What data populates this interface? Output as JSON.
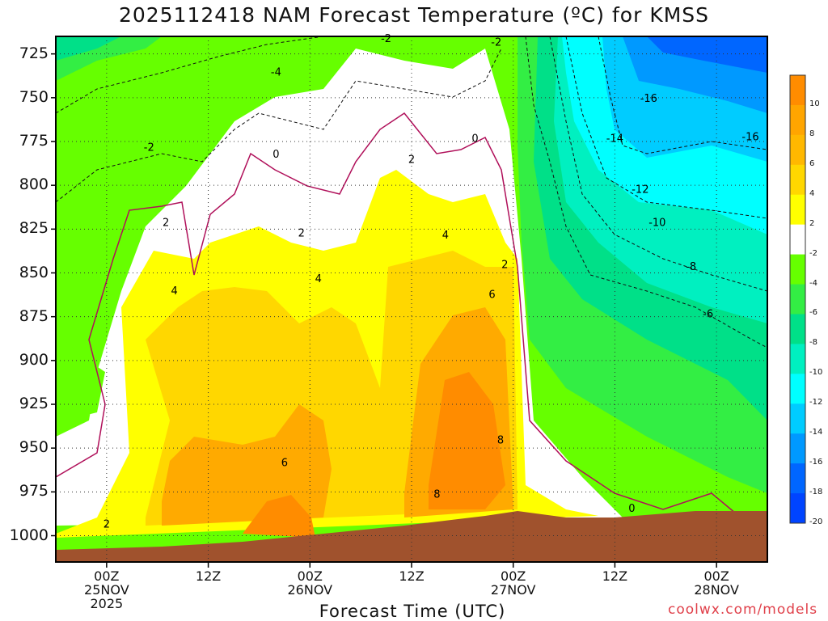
{
  "title": "2025112418 NAM Forecast Temperature (ºC) for KMSS",
  "xlabel": "Forecast Time (UTC)",
  "credit": "coolwx.com/models",
  "colors": {
    "ground": "#a0522d",
    "white_band": "#ffffff",
    "zero_line": "#b0105a",
    "warm": [
      "#ffff00",
      "#ffd700",
      "#ffaa00",
      "#ff8c00"
    ],
    "cold": [
      "#66ff00",
      "#33ee44",
      "#00e088",
      "#00f0c0",
      "#00ffff",
      "#00ccff",
      "#0099ff",
      "#0066ff"
    ]
  },
  "chart_data": {
    "type": "heatmap",
    "title": "2025112418 NAM Forecast Temperature (ºC) for KMSS",
    "xlabel": "Forecast Time (UTC)",
    "ylabel": "",
    "y_ticks": [
      "725",
      "750",
      "775",
      "800",
      "825",
      "850",
      "875",
      "900",
      "925",
      "950",
      "975",
      "1000"
    ],
    "ylim": [
      715,
      1015
    ],
    "x_ticks": [
      {
        "hour": 0,
        "line1": "00Z",
        "line2": "25NOV",
        "line3": "2025"
      },
      {
        "hour": 12,
        "line1": "12Z",
        "line2": "",
        "line3": ""
      },
      {
        "hour": 24,
        "line1": "00Z",
        "line2": "26NOV",
        "line3": ""
      },
      {
        "hour": 36,
        "line1": "12Z",
        "line2": "",
        "line3": ""
      },
      {
        "hour": 48,
        "line1": "00Z",
        "line2": "27NOV",
        "line3": ""
      },
      {
        "hour": 60,
        "line1": "12Z",
        "line2": "",
        "line3": ""
      },
      {
        "hour": 72,
        "line1": "00Z",
        "line2": "28NOV",
        "line3": ""
      }
    ],
    "xlim": [
      -6,
      78
    ],
    "colorbar": {
      "labels": [
        "10",
        "8",
        "6",
        "4",
        "2",
        "-2",
        "-4",
        "-6",
        "-8",
        "-10",
        "-12",
        "-14",
        "-16",
        "-18",
        "-20"
      ],
      "colors": [
        "#ff8c00",
        "#ffa500",
        "#ffb800",
        "#ffd700",
        "#ffff00",
        "#ffffff",
        "#66ff00",
        "#33ee44",
        "#00e088",
        "#00f0c0",
        "#00ffff",
        "#00ccff",
        "#0099ff",
        "#0066ff",
        "#0044ff"
      ]
    },
    "contour_labels": [
      {
        "text": "-2",
        "hour": 33,
        "p": 716
      },
      {
        "text": "-2",
        "hour": 46,
        "p": 718
      },
      {
        "text": "-4",
        "hour": 20,
        "p": 735
      },
      {
        "text": "-2",
        "hour": 5,
        "p": 778
      },
      {
        "text": "0",
        "hour": 20,
        "p": 782
      },
      {
        "text": "0",
        "hour": 43.5,
        "p": 773
      },
      {
        "text": "2",
        "hour": 36,
        "p": 785
      },
      {
        "text": "-16",
        "hour": 64,
        "p": 750
      },
      {
        "text": "-16",
        "hour": 76,
        "p": 772
      },
      {
        "text": "-14",
        "hour": 60,
        "p": 773
      },
      {
        "text": "-12",
        "hour": 63,
        "p": 802
      },
      {
        "text": "-10",
        "hour": 65,
        "p": 821
      },
      {
        "text": "-8",
        "hour": 69,
        "p": 846
      },
      {
        "text": "-6",
        "hour": 71,
        "p": 873
      },
      {
        "text": "2",
        "hour": 7,
        "p": 821
      },
      {
        "text": "2",
        "hour": 23,
        "p": 827
      },
      {
        "text": "4",
        "hour": 40,
        "p": 828
      },
      {
        "text": "2",
        "hour": 47,
        "p": 845
      },
      {
        "text": "4",
        "hour": 8,
        "p": 860
      },
      {
        "text": "4",
        "hour": 25,
        "p": 853
      },
      {
        "text": "6",
        "hour": 45.5,
        "p": 862
      },
      {
        "text": "6",
        "hour": 21,
        "p": 958
      },
      {
        "text": "8",
        "hour": 46.5,
        "p": 945
      },
      {
        "text": "8",
        "hour": 39,
        "p": 976
      },
      {
        "text": "2",
        "hour": 0,
        "p": 993
      },
      {
        "text": "0",
        "hour": 62,
        "p": 984
      }
    ]
  }
}
